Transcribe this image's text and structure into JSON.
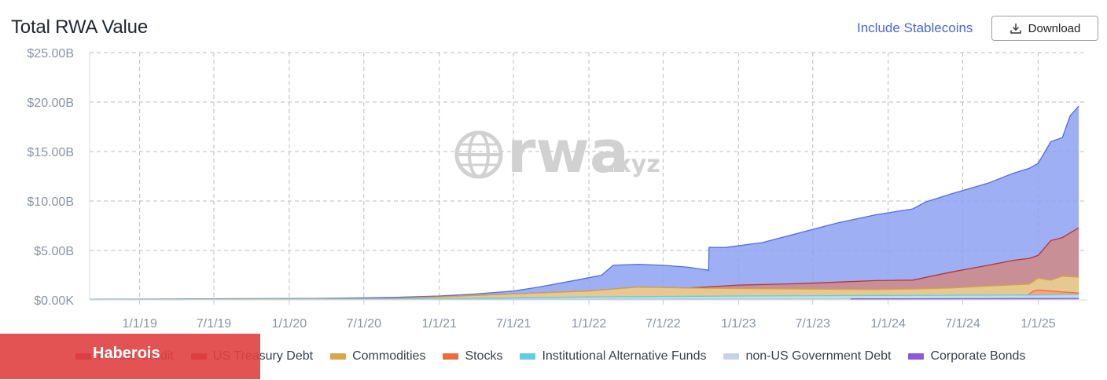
{
  "header": {
    "title": "Total RWA Value",
    "stablecoin_toggle": "Include Stablecoins",
    "download_label": "Download"
  },
  "watermark": {
    "brand": "rwa",
    "suffix": ".xyz"
  },
  "banner": {
    "label": "Haberois"
  },
  "legend": [
    {
      "label": "Private Credit",
      "color": "#a8365f"
    },
    {
      "label": "US Treasury Debt",
      "color": "#c52b2b"
    },
    {
      "label": "Commodities",
      "color": "#d6a84a"
    },
    {
      "label": "Stocks",
      "color": "#ee6a3f"
    },
    {
      "label": "Institutional Alternative Funds",
      "color": "#63cbe3"
    },
    {
      "label": "non-US Government Debt",
      "color": "#c9d3e6"
    },
    {
      "label": "Corporate Bonds",
      "color": "#8a5ad8"
    }
  ],
  "chart_data": {
    "type": "area",
    "stacked": false,
    "y_tick_labels": [
      "$0.00K",
      "$5.00B",
      "$10.00B",
      "$15.00B",
      "$20.00B",
      "$25.00B"
    ],
    "x_tick_labels": [
      "1/1/19",
      "7/1/19",
      "1/1/20",
      "7/1/20",
      "1/1/21",
      "7/1/21",
      "1/1/22",
      "7/1/22",
      "1/1/23",
      "7/1/23",
      "1/1/24",
      "7/1/24",
      "1/1/25"
    ],
    "ylim": [
      0,
      25
    ],
    "xlim": [
      "2018-09-01",
      "2025-05-01"
    ],
    "grid": true,
    "legend_position": "bottom",
    "unit": "$B",
    "series": [
      {
        "name": "Private Credit",
        "color": "#4f6ee0",
        "fill": "#8ea1f2",
        "x": [
          "2018-09-01",
          "2019-06-01",
          "2020-03-01",
          "2020-09-01",
          "2021-01-01",
          "2021-04-01",
          "2021-07-01",
          "2021-09-01",
          "2021-12-01",
          "2022-02-01",
          "2022-03-01",
          "2022-05-01",
          "2022-07-01",
          "2022-09-01",
          "2022-10-20",
          "2022-10-21",
          "2022-12-01",
          "2023-03-01",
          "2023-06-01",
          "2023-09-01",
          "2023-12-01",
          "2024-03-01",
          "2024-04-01",
          "2024-06-01",
          "2024-09-01",
          "2024-11-01",
          "2024-12-10",
          "2025-01-01",
          "2025-02-01",
          "2025-03-01",
          "2025-03-20",
          "2025-04-10"
        ],
        "y": [
          0.05,
          0.1,
          0.15,
          0.25,
          0.4,
          0.6,
          0.9,
          1.3,
          2.0,
          2.5,
          3.5,
          3.6,
          3.5,
          3.3,
          3.0,
          5.3,
          5.3,
          5.8,
          6.8,
          7.8,
          8.6,
          9.2,
          9.9,
          10.7,
          11.8,
          12.8,
          13.3,
          13.8,
          16.0,
          16.4,
          18.6,
          19.6
        ]
      },
      {
        "name": "US Treasury Debt",
        "color": "#b53535",
        "fill": "#cf8a86",
        "x": [
          "2018-09-01",
          "2020-09-01",
          "2021-01-01",
          "2021-07-01",
          "2022-01-01",
          "2022-05-01",
          "2022-09-01",
          "2023-01-01",
          "2023-06-01",
          "2023-09-01",
          "2023-12-01",
          "2024-03-01",
          "2024-06-01",
          "2024-09-01",
          "2024-11-01",
          "2024-12-10",
          "2025-01-01",
          "2025-02-01",
          "2025-03-01",
          "2025-04-10"
        ],
        "y": [
          0.03,
          0.15,
          0.3,
          0.6,
          0.9,
          1.3,
          1.2,
          1.5,
          1.65,
          1.8,
          1.95,
          2.0,
          2.8,
          3.5,
          4.0,
          4.2,
          4.5,
          6.0,
          6.3,
          7.3
        ]
      },
      {
        "name": "Commodities",
        "color": "#d4a441",
        "fill": "#ecd28f",
        "x": [
          "2018-09-01",
          "2020-09-01",
          "2021-01-01",
          "2021-07-01",
          "2022-01-01",
          "2022-05-01",
          "2022-09-01",
          "2023-01-01",
          "2023-06-01",
          "2023-12-01",
          "2024-03-01",
          "2024-06-01",
          "2024-09-01",
          "2024-12-10",
          "2025-01-01",
          "2025-02-01",
          "2025-03-01",
          "2025-04-10"
        ],
        "y": [
          0.03,
          0.15,
          0.3,
          0.6,
          0.9,
          1.3,
          1.2,
          1.15,
          1.1,
          1.05,
          1.1,
          1.2,
          1.4,
          1.6,
          2.2,
          2.0,
          2.4,
          2.3
        ]
      },
      {
        "name": "Stocks",
        "color": "#ee6a3f",
        "fill": "#f4a07e",
        "x": [
          "2024-12-01",
          "2024-12-20",
          "2025-01-01",
          "2025-02-01",
          "2025-03-01",
          "2025-04-10"
        ],
        "y": [
          0.3,
          0.9,
          1.0,
          0.9,
          0.8,
          0.7
        ]
      },
      {
        "name": "Institutional Alternative Funds",
        "color": "#63cbe3",
        "fill": "#b6e6f2",
        "x": [
          "2018-09-01",
          "2021-01-01",
          "2022-01-01",
          "2023-01-01",
          "2024-01-01",
          "2025-01-01",
          "2025-04-10"
        ],
        "y": [
          0.02,
          0.1,
          0.3,
          0.4,
          0.45,
          0.5,
          0.55
        ]
      },
      {
        "name": "non-US Government Debt",
        "color": "#b8c4dc",
        "fill": "#dfe6f3",
        "x": [
          "2018-09-01",
          "2021-01-01",
          "2023-01-01",
          "2025-04-10"
        ],
        "y": [
          0.01,
          0.05,
          0.1,
          0.15
        ]
      },
      {
        "name": "Corporate Bonds",
        "color": "#8a5ad8",
        "fill": "#b79ae8",
        "x": [
          "2023-10-01",
          "2024-06-01",
          "2025-04-10"
        ],
        "y": [
          0.1,
          0.12,
          0.15
        ]
      }
    ]
  }
}
